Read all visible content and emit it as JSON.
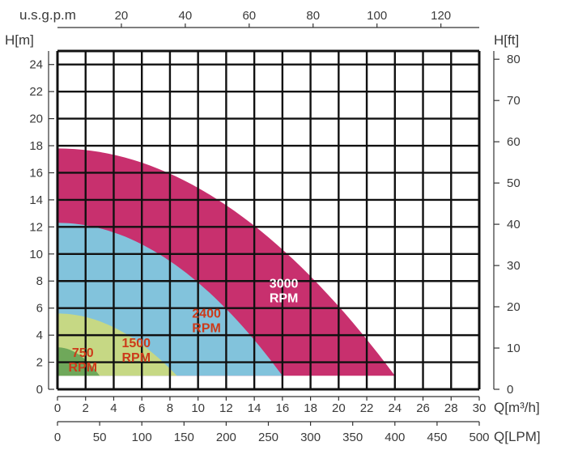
{
  "chart_data": {
    "type": "area",
    "title": "",
    "x_primary": {
      "label": "Q[m³/h]",
      "ticks": [
        0,
        2,
        4,
        6,
        8,
        10,
        12,
        14,
        16,
        18,
        20,
        22,
        24,
        26,
        28,
        30
      ],
      "range": [
        0,
        30
      ]
    },
    "x_lpm": {
      "label": "Q[LPM]",
      "ticks": [
        0,
        50,
        100,
        150,
        200,
        250,
        300,
        350,
        400,
        450,
        500
      ],
      "range": [
        0,
        500
      ]
    },
    "x_usgpm": {
      "label": "u.s.g.p.m",
      "ticks": [
        20,
        40,
        60,
        80,
        100,
        120
      ],
      "range": [
        0,
        132
      ]
    },
    "y_left": {
      "label": "H[m]",
      "ticks": [
        0,
        2,
        4,
        6,
        8,
        10,
        12,
        14,
        16,
        18,
        20,
        22,
        24
      ],
      "range": [
        0,
        25
      ]
    },
    "y_right": {
      "label": "H[ft]",
      "ticks": [
        0,
        10,
        20,
        30,
        40,
        50,
        60,
        70,
        80
      ],
      "range": [
        0,
        82
      ]
    },
    "grid": true,
    "floor_head": 1,
    "series": [
      {
        "name": "3000 RPM",
        "label_lines": [
          "3000",
          "RPM"
        ],
        "color": "#c8306e",
        "label_color": "#ffffff",
        "shutoff_head": 17.8,
        "max_flow": 24,
        "label_at": [
          16.1,
          7.5
        ]
      },
      {
        "name": "2400 RPM",
        "label_lines": [
          "2400",
          "RPM"
        ],
        "color": "#82c3dc",
        "label_color": "#cc3a1a",
        "shutoff_head": 12.3,
        "max_flow": 16,
        "label_at": [
          10.6,
          5.3
        ]
      },
      {
        "name": "1500 RPM",
        "label_lines": [
          "1500",
          "RPM"
        ],
        "color": "#c6d884",
        "label_color": "#cc3a1a",
        "shutoff_head": 5.6,
        "max_flow": 8.5,
        "label_at": [
          5.6,
          3.1
        ]
      },
      {
        "name": "750 RPM",
        "label_lines": [
          "750",
          "RPM"
        ],
        "color": "#6fa85a",
        "label_color": "#cc3a1a",
        "shutoff_head": 3.1,
        "max_flow": 3,
        "label_at": [
          1.8,
          2.4
        ]
      }
    ]
  }
}
